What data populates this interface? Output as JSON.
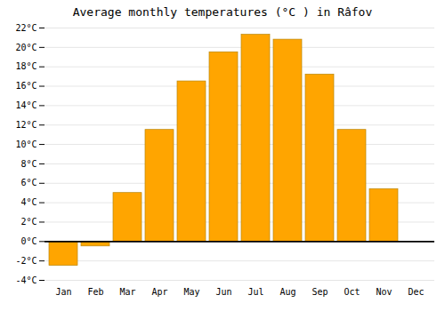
{
  "chart_data": {
    "type": "bar",
    "title": "Average monthly temperatures (°C ) in Râfov",
    "categories": [
      "Jan",
      "Feb",
      "Mar",
      "Apr",
      "May",
      "Jun",
      "Jul",
      "Aug",
      "Sep",
      "Oct",
      "Nov",
      "Dec"
    ],
    "values": [
      -2.5,
      -0.5,
      5.0,
      11.5,
      16.5,
      19.5,
      21.3,
      20.8,
      17.2,
      11.5,
      5.4,
      0.0
    ],
    "color": "#FFA500",
    "ylim": [
      -4,
      22
    ],
    "yticks": [
      {
        "value": -4,
        "label": "-4°C"
      },
      {
        "value": -2,
        "label": "-2°C"
      },
      {
        "value": 0,
        "label": "0°C"
      },
      {
        "value": 2,
        "label": "2°C"
      },
      {
        "value": 4,
        "label": "4°C"
      },
      {
        "value": 6,
        "label": "6°C"
      },
      {
        "value": 8,
        "label": "8°C"
      },
      {
        "value": 10,
        "label": "10°C"
      },
      {
        "value": 12,
        "label": "12°C"
      },
      {
        "value": 14,
        "label": "14°C"
      },
      {
        "value": 16,
        "label": "16°C"
      },
      {
        "value": 18,
        "label": "18°C"
      },
      {
        "value": 20,
        "label": "20°C"
      },
      {
        "value": 22,
        "label": "22°C"
      }
    ],
    "grid": true
  }
}
